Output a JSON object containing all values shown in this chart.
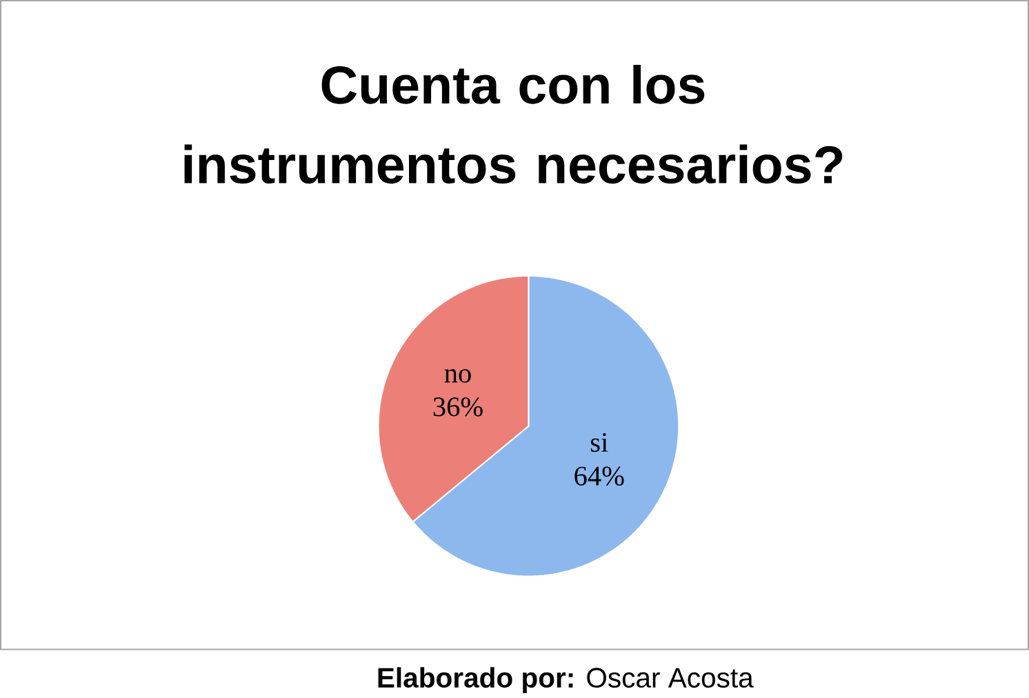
{
  "chart_data": {
    "type": "pie",
    "title": "Cuenta con los instrumentos necesarios?",
    "categories": [
      "si",
      "no"
    ],
    "values": [
      64,
      36
    ],
    "value_labels": [
      "64%",
      "36%"
    ],
    "colors": [
      "#8db8ee",
      "#ec8078"
    ],
    "annotations": [
      "**Elaborado por:** Oscar Acosta"
    ]
  }
}
